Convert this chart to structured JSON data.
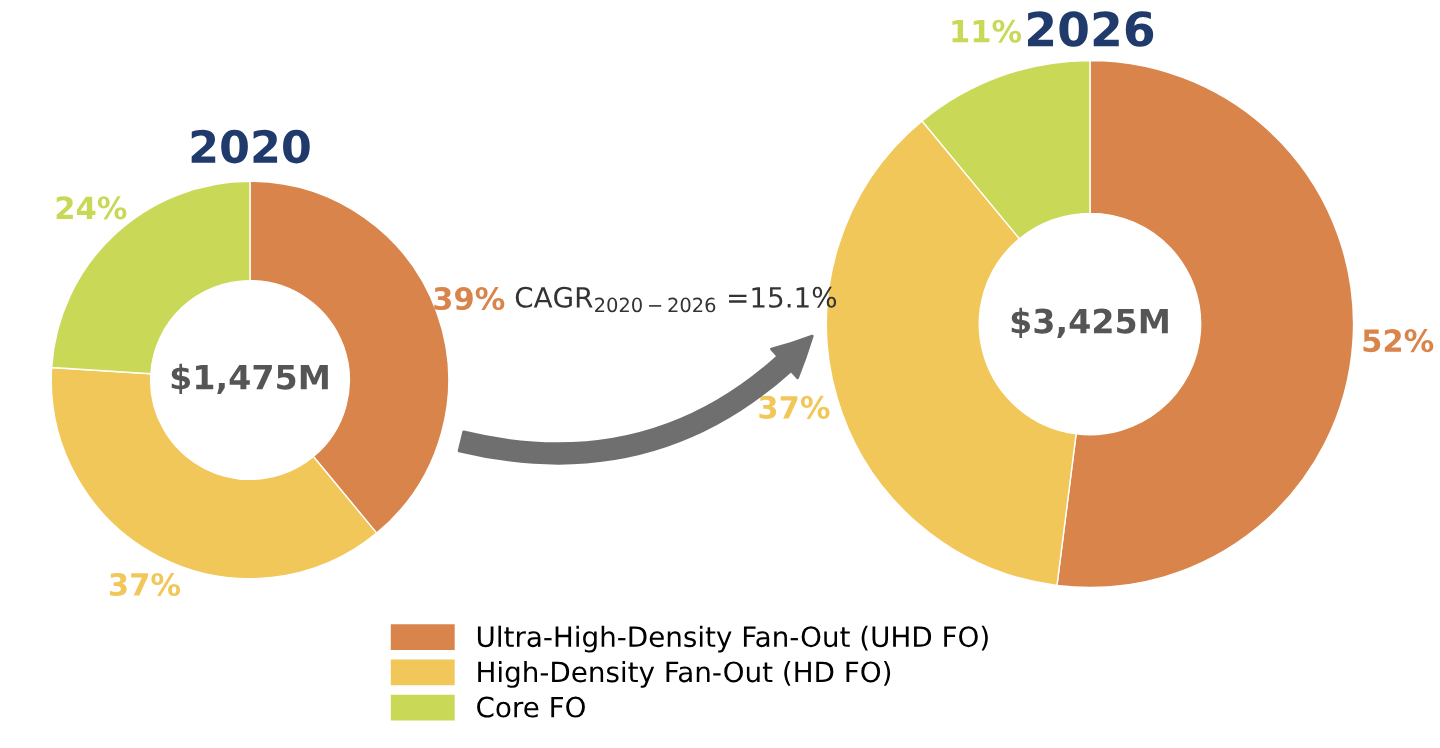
{
  "chart_data": [
    {
      "type": "donut",
      "title": "2020",
      "categories": [
        "Ultra-High-Density Fan-Out (UHD FO)",
        "High-Density Fan-Out (HD FO)",
        "Core FO"
      ],
      "values": [
        39,
        37,
        24
      ],
      "colors": [
        "#d9844a",
        "#f2c75a",
        "#c9d957"
      ],
      "value_labels": [
        "39%",
        "37%",
        "24%"
      ],
      "annotations": [
        "$1,475M",
        "CAGR$_{2020−2026}$ =15.1%"
      ],
      "legend": "bottom"
    },
    {
      "type": "donut",
      "title": "2026",
      "categories": [
        null,
        null,
        null
      ],
      "values": [
        52,
        37,
        11
      ],
      "colors": [
        "#d9844a",
        "#f2c75a",
        "#c9d957"
      ],
      "value_labels": [
        "52%",
        "37%",
        "11%"
      ],
      "annotations": [
        "$3,425M"
      ]
    }
  ]
}
